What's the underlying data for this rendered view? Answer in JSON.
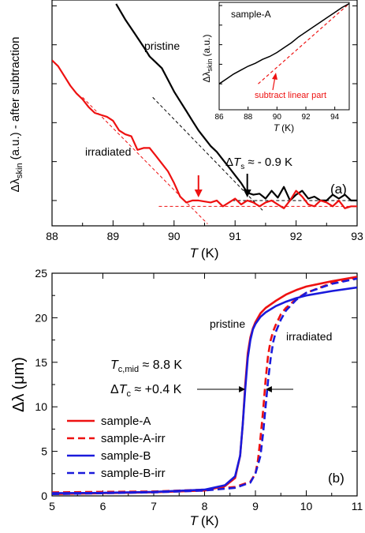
{
  "chart_data": [
    {
      "panel": "(a)",
      "type": "line",
      "xlabel": "T (K)",
      "xlabel_var": "T",
      "xlabel_unit": "(K)",
      "ylabel": "Δλskin (a.u.) - after subtraction",
      "ylabel_sym": "Δλ",
      "ylabel_sub": "skin",
      "ylabel_rest": "(a.u.) - after subtraction",
      "xlim": [
        88,
        93
      ],
      "ylim": [
        0,
        10
      ],
      "x_ticks": [
        "88",
        "89",
        "90",
        "91",
        "92",
        "93"
      ],
      "y_tick_labels": false,
      "grid": false,
      "series": [
        {
          "name": "pristine",
          "color": "#000000",
          "x": [
            89.05,
            89.2,
            89.35,
            89.5,
            89.6,
            89.7,
            89.8,
            89.9,
            90.0,
            90.1,
            90.2,
            90.3,
            90.4,
            90.5,
            90.6,
            90.7,
            90.8,
            90.9,
            91.0,
            91.1,
            91.2,
            91.3,
            91.4,
            91.5,
            91.6,
            91.7,
            91.8,
            91.9,
            92.0,
            92.1,
            92.2,
            92.3,
            92.4,
            92.5,
            92.6,
            92.7,
            92.8,
            92.9,
            93.0
          ],
          "y": [
            10.1,
            9.3,
            8.6,
            7.9,
            7.4,
            7.1,
            6.8,
            6.2,
            5.6,
            5.1,
            4.6,
            4.1,
            3.6,
            3.2,
            2.8,
            2.5,
            2.1,
            1.7,
            1.3,
            0.9,
            0.4,
            0.3,
            0.35,
            0.1,
            0.5,
            0.15,
            0.7,
            0.0,
            0.3,
            0.5,
            0.1,
            0.2,
            0.0,
            0.0,
            0.3,
            0.1,
            0.3,
            0.0,
            0.0
          ]
        },
        {
          "name": "irradiated",
          "color": "#ee1111",
          "x": [
            88.0,
            88.1,
            88.2,
            88.3,
            88.4,
            88.5,
            88.6,
            88.7,
            88.8,
            88.9,
            89.0,
            89.1,
            89.2,
            89.3,
            89.4,
            89.5,
            89.6,
            89.7,
            89.8,
            89.9,
            90.0,
            90.1,
            90.2,
            90.3,
            90.4,
            90.5,
            90.6,
            90.7,
            90.8,
            90.9,
            91.0,
            91.1,
            91.2,
            91.3,
            91.4,
            91.5,
            91.6,
            91.7,
            91.8,
            91.9,
            92.0,
            92.1,
            92.2,
            92.3,
            92.4,
            92.5,
            92.6,
            92.7,
            92.8,
            92.9,
            93.0
          ],
          "y": [
            7.2,
            6.9,
            6.4,
            5.9,
            5.5,
            5.2,
            4.8,
            4.5,
            4.4,
            4.3,
            4.1,
            3.6,
            3.4,
            3.3,
            2.6,
            2.7,
            2.7,
            2.3,
            1.9,
            1.5,
            0.9,
            0.2,
            -0.1,
            0.0,
            0.0,
            -0.05,
            -0.1,
            0.0,
            -0.3,
            -0.1,
            0.1,
            -0.2,
            0.0,
            -0.1,
            -0.3,
            -0.1,
            0.0,
            -0.2,
            -0.4,
            0.0,
            0.5,
            0.2,
            -0.2,
            -0.3,
            0.0,
            -0.1,
            -0.3,
            0.0,
            -0.4,
            -0.3,
            -0.3
          ]
        }
      ],
      "guide_lines": [
        {
          "color": "#000000",
          "x": [
            89.65,
            91.45
          ],
          "y": [
            5.3,
            -0.5
          ]
        },
        {
          "color": "#000000",
          "x": [
            90.95,
            93.0
          ],
          "y": [
            0.0,
            0.0
          ]
        },
        {
          "color": "#ee1111",
          "x": [
            88.5,
            90.55
          ],
          "y": [
            5.3,
            -1.2
          ]
        },
        {
          "color": "#ee1111",
          "x": [
            89.75,
            93.0
          ],
          "y": [
            -0.3,
            -0.3
          ]
        }
      ],
      "annotations": {
        "pristine": "pristine",
        "irradiated": "irradiated",
        "delta_ts_prefix": "Δ",
        "delta_ts_var": "T",
        "delta_ts_sub": "s",
        "delta_ts_value": " ≈ - 0.9 K",
        "panel_label": "(a)",
        "arrow_red_x": 90.4,
        "arrow_black_x": 91.2
      },
      "inset": {
        "title": "sample-A",
        "type": "line",
        "xlabel_var": "T",
        "xlabel_unit": "(K)",
        "ylabel_sym": "Δλ",
        "ylabel_sub": "skin",
        "ylabel_rest": "(a.u.)",
        "xlim": [
          86,
          95
        ],
        "ylim": [
          0,
          10
        ],
        "x_ticks": [
          "86",
          "88",
          "90",
          "92",
          "94"
        ],
        "series": {
          "color": "#000000",
          "x": [
            86.0,
            86.5,
            87.0,
            87.5,
            88.0,
            88.5,
            89.0,
            89.5,
            90.0,
            90.5,
            91.0,
            91.5,
            92.0,
            92.5,
            93.0,
            93.5,
            94.0,
            94.5,
            95.0
          ],
          "y": [
            2.0,
            2.5,
            3.0,
            3.4,
            3.8,
            4.1,
            4.5,
            4.8,
            5.2,
            5.7,
            6.2,
            6.8,
            7.3,
            7.8,
            8.3,
            8.8,
            9.3,
            9.8,
            10.2
          ]
        },
        "fit_line": {
          "color": "#ee1111",
          "x": [
            88.7,
            95.0
          ],
          "y": [
            2.0,
            10.2
          ]
        },
        "annotation": "subtract linear part"
      }
    },
    {
      "panel": "(b)",
      "type": "line",
      "xlabel_var": "T",
      "xlabel_unit": "(K)",
      "ylabel_sym": "Δλ",
      "ylabel_unit": "(μm)",
      "xlim": [
        5,
        11
      ],
      "ylim": [
        0,
        25
      ],
      "x_ticks": [
        "5",
        "6",
        "7",
        "8",
        "9",
        "10",
        "11"
      ],
      "y_ticks": [
        "0",
        "5",
        "10",
        "15",
        "20",
        "25"
      ],
      "grid": false,
      "legend_position": "bottom-left",
      "series": [
        {
          "name": "sample-A",
          "color": "#ee1111",
          "dash": false,
          "x": [
            5.0,
            6.0,
            7.0,
            8.0,
            8.4,
            8.6,
            8.7,
            8.75,
            8.8,
            8.85,
            8.9,
            8.95,
            9.0,
            9.1,
            9.2,
            9.4,
            9.6,
            9.8,
            10.0,
            10.5,
            11.0
          ],
          "y": [
            0.2,
            0.3,
            0.4,
            0.6,
            1.1,
            2.0,
            4.5,
            8.0,
            12.5,
            16.0,
            17.8,
            18.8,
            19.5,
            20.5,
            21.1,
            21.9,
            22.6,
            23.1,
            23.5,
            24.1,
            24.6
          ]
        },
        {
          "name": "sample-A-irr",
          "color": "#ee1111",
          "dash": true,
          "x": [
            5.0,
            6.0,
            7.0,
            8.0,
            8.6,
            8.9,
            9.0,
            9.05,
            9.1,
            9.15,
            9.2,
            9.25,
            9.3,
            9.35,
            9.4,
            9.5,
            9.6,
            9.8,
            10.0,
            10.5,
            11.0
          ],
          "y": [
            0.4,
            0.45,
            0.5,
            0.7,
            1.0,
            1.6,
            2.5,
            4.0,
            6.5,
            9.5,
            13.0,
            15.8,
            17.5,
            18.5,
            19.2,
            20.4,
            21.1,
            22.1,
            22.8,
            23.9,
            24.5
          ]
        },
        {
          "name": "sample-B",
          "color": "#1a1adb",
          "dash": false,
          "x": [
            5.0,
            6.0,
            7.0,
            8.0,
            8.4,
            8.6,
            8.7,
            8.75,
            8.8,
            8.85,
            8.9,
            8.95,
            9.0,
            9.1,
            9.2,
            9.4,
            9.6,
            9.8,
            10.0,
            10.5,
            11.0
          ],
          "y": [
            0.3,
            0.35,
            0.45,
            0.7,
            1.2,
            2.2,
            4.5,
            8.0,
            12.0,
            15.5,
            17.5,
            18.7,
            19.3,
            20.1,
            20.6,
            21.3,
            21.8,
            22.2,
            22.5,
            23.0,
            23.4
          ]
        },
        {
          "name": "sample-B-irr",
          "color": "#1a1adb",
          "dash": true,
          "x": [
            5.0,
            6.0,
            7.0,
            8.0,
            8.6,
            8.9,
            9.0,
            9.1,
            9.15,
            9.2,
            9.25,
            9.3,
            9.35,
            9.4,
            9.5,
            9.6,
            9.8,
            10.0,
            10.5,
            11.0
          ],
          "y": [
            0.2,
            0.3,
            0.4,
            0.6,
            0.9,
            1.5,
            2.5,
            4.5,
            7.0,
            10.0,
            13.0,
            15.5,
            17.3,
            18.4,
            19.8,
            20.8,
            22.0,
            22.8,
            23.8,
            24.4
          ]
        }
      ],
      "annotations": {
        "pristine": "pristine",
        "irradiated": "irradiated",
        "tc_mid_var": "T",
        "tc_mid_sub": "c,mid",
        "tc_mid_value": " ≈ 8.8 K",
        "delta_tc_prefix": "Δ",
        "delta_tc_var": "T",
        "delta_tc_sub": "c",
        "delta_tc_value": " ≈ +0.4 K",
        "panel_label": "(b)",
        "arrow_left_x": 8.8,
        "arrow_right_x": 9.2
      }
    }
  ]
}
